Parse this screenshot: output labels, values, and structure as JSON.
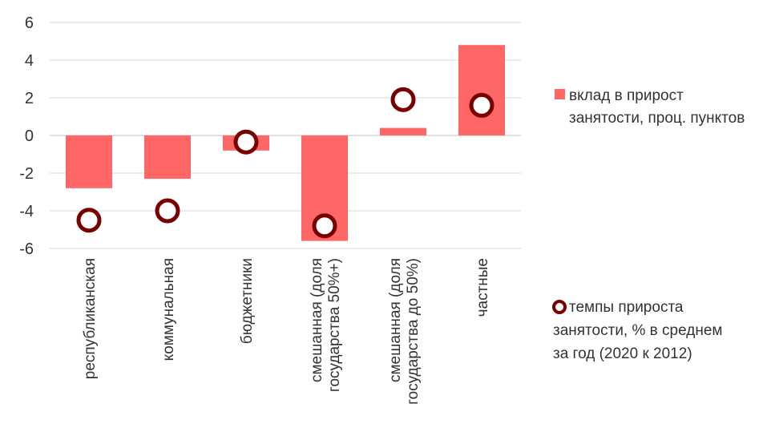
{
  "chart_data": {
    "type": "bar",
    "categories": [
      [
        "республиканская"
      ],
      [
        "коммунальная"
      ],
      [
        "бюджетники"
      ],
      [
        "смешанная (доля",
        "государства 50%+)"
      ],
      [
        "смешанная (доля",
        "государства до 50%)"
      ],
      [
        "частные"
      ]
    ],
    "series": [
      {
        "name": "вклад в прирост занятости, проц. пунктов",
        "name_lines": [
          "вклад в прирост",
          "занятости, проц. пунктов"
        ],
        "kind": "bar",
        "color": "#ff6666",
        "values": [
          -2.8,
          -2.3,
          -0.8,
          -5.6,
          0.4,
          4.8
        ]
      },
      {
        "name": "темпы прироста занятости, % в среднем за год (2020 к 2012)",
        "name_lines": [
          "темпы прироста",
          "занятости, % в среднем",
          "за год (2020 к 2012)"
        ],
        "kind": "marker",
        "color": "#7a0000",
        "values": [
          -4.5,
          -4.0,
          -0.35,
          -4.8,
          1.9,
          1.6
        ]
      }
    ],
    "yticks": [
      6,
      4,
      2,
      0,
      -2,
      -4,
      -6
    ],
    "ylim": [
      -6,
      6
    ],
    "grid": true,
    "legend": "right"
  }
}
